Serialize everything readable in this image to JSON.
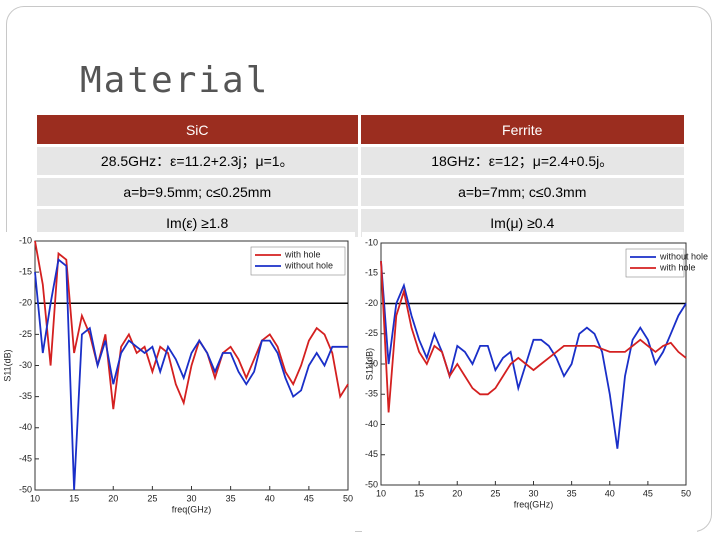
{
  "title": "Material",
  "table": {
    "header": [
      "SiC",
      "Ferrite"
    ],
    "rows": [
      [
        "28.5GHz：ε=11.2+2.3j；μ=1。",
        "18GHz：ε=12；μ=2.4+0.5j。"
      ],
      [
        "a=b=9.5mm; c≤0.25mm",
        "a=b=7mm; c≤0.3mm"
      ],
      [
        "Im(ε) ≥1.8",
        "Im(μ) ≥0.4"
      ]
    ]
  },
  "chart_data": [
    {
      "type": "line",
      "x_label": "freq(GHz)",
      "y_label": "S11(dB)",
      "x": [
        10,
        11,
        12,
        13,
        14,
        15,
        16,
        17,
        18,
        19,
        20,
        21,
        22,
        23,
        24,
        25,
        26,
        27,
        28,
        29,
        30,
        31,
        32,
        33,
        34,
        35,
        36,
        37,
        38,
        39,
        40,
        41,
        42,
        43,
        44,
        45,
        46,
        47,
        48,
        49,
        50
      ],
      "xlim": [
        10,
        50
      ],
      "xticks": [
        10,
        15,
        20,
        25,
        30,
        35,
        40,
        45,
        50
      ],
      "ylim": [
        -50,
        -10
      ],
      "yticks": [
        -10,
        -15,
        -20,
        -25,
        -30,
        -35,
        -40,
        -45,
        -50
      ],
      "hline": -20,
      "series": [
        {
          "name": "with hole",
          "color": "#d42020",
          "values": [
            -10,
            -17,
            -30,
            -12,
            -13,
            -28,
            -22,
            -25,
            -30,
            -25,
            -37,
            -27,
            -25,
            -28,
            -27,
            -31,
            -27,
            -28,
            -33,
            -36,
            -30,
            -26,
            -28,
            -32,
            -28,
            -27,
            -29,
            -32,
            -29,
            -26,
            -25,
            -27,
            -31,
            -33,
            -30,
            -26,
            -24,
            -25,
            -28,
            -35,
            -33
          ]
        },
        {
          "name": "without hole",
          "color": "#1a2fc8",
          "values": [
            -15,
            -28,
            -20,
            -13,
            -14,
            -50,
            -25,
            -24,
            -30,
            -26,
            -33,
            -28,
            -26,
            -27,
            -28,
            -27,
            -31,
            -27,
            -29,
            -32,
            -28,
            -26,
            -28,
            -31,
            -28,
            -28,
            -31,
            -33,
            -31,
            -26,
            -26,
            -28,
            -32,
            -35,
            -34,
            -30,
            -28,
            -30,
            -27,
            -27,
            -27
          ]
        }
      ]
    },
    {
      "type": "line",
      "x_label": "freq(GHz)",
      "y_label": "S11(dB)",
      "x": [
        10,
        11,
        12,
        13,
        14,
        15,
        16,
        17,
        18,
        19,
        20,
        21,
        22,
        23,
        24,
        25,
        26,
        27,
        28,
        29,
        30,
        31,
        32,
        33,
        34,
        35,
        36,
        37,
        38,
        39,
        40,
        41,
        42,
        43,
        44,
        45,
        46,
        47,
        48,
        49,
        50
      ],
      "xlim": [
        10,
        50
      ],
      "xticks": [
        10,
        15,
        20,
        25,
        30,
        35,
        40,
        45,
        50
      ],
      "ylim": [
        -50,
        -10
      ],
      "yticks": [
        -10,
        -15,
        -20,
        -25,
        -30,
        -35,
        -40,
        -45,
        -50
      ],
      "hline": -20,
      "series": [
        {
          "name": "without hole",
          "color": "#1a2fc8",
          "values": [
            -13,
            -30,
            -20,
            -17,
            -22,
            -26,
            -29,
            -25,
            -28,
            -32,
            -27,
            -28,
            -30,
            -27,
            -27,
            -31,
            -29,
            -28,
            -34,
            -30,
            -26,
            -26,
            -27,
            -29,
            -32,
            -30,
            -25,
            -24,
            -25,
            -28,
            -35,
            -44,
            -32,
            -26,
            -24,
            -26,
            -30,
            -28,
            -25,
            -22,
            -20
          ]
        },
        {
          "name": "with hole",
          "color": "#d42020",
          "values": [
            -13,
            -38,
            -22,
            -18,
            -24,
            -28,
            -30,
            -27,
            -28,
            -32,
            -30,
            -32,
            -34,
            -35,
            -35,
            -34,
            -32,
            -30,
            -29,
            -30,
            -31,
            -30,
            -29,
            -28,
            -27,
            -27,
            -27,
            -27,
            -27,
            -27.5,
            -28,
            -28,
            -28,
            -27,
            -26,
            -27,
            -28,
            -27,
            -26.5,
            -28,
            -29
          ]
        }
      ]
    }
  ]
}
